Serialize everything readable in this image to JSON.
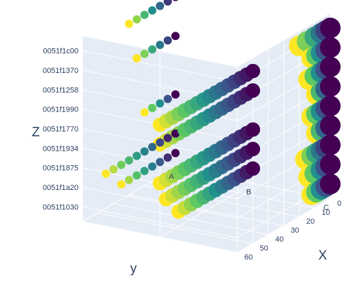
{
  "chart_data": {
    "type": "scatter",
    "mode": "3d",
    "colorscale": "viridis",
    "colorscale_stops": [
      "#440154",
      "#3b528b",
      "#21908c",
      "#5dc963",
      "#fde725"
    ],
    "background": "#e5ecf6",
    "grid": true,
    "axes": {
      "x": {
        "title": "X",
        "ticks": [
          "0",
          "10",
          "20",
          "30",
          "40",
          "50",
          "60"
        ],
        "range": [
          0,
          60
        ]
      },
      "y": {
        "title": "y",
        "ticks": [
          "A",
          "B",
          "C"
        ]
      },
      "z": {
        "title": "Z",
        "ticks": [
          "0051f1030",
          "0051f1a20",
          "0051f1875",
          "0051f1934",
          "0051f1770",
          "0051f1990",
          "0051f1258",
          "0051f1370",
          "0051f1c00"
        ]
      }
    },
    "series": [
      {
        "y": "C",
        "z": "0051f1030",
        "x": [
          0,
          3,
          6,
          9,
          12
        ]
      },
      {
        "y": "C",
        "z": "0051f1a20",
        "x": [
          0,
          3,
          6,
          10,
          14
        ]
      },
      {
        "y": "C",
        "z": "0051f1875",
        "x": [
          0,
          3,
          6,
          9,
          12,
          16
        ]
      },
      {
        "y": "C",
        "z": "0051f1934",
        "x": [
          0,
          3,
          6,
          9
        ]
      },
      {
        "y": "C",
        "z": "0051f1770",
        "x": [
          0,
          3,
          6,
          9,
          12
        ]
      },
      {
        "y": "C",
        "z": "0051f1990",
        "x": [
          0,
          3,
          6,
          9
        ]
      },
      {
        "y": "C",
        "z": "0051f1258",
        "x": [
          0,
          3,
          6,
          10,
          14
        ]
      },
      {
        "y": "C",
        "z": "0051f1370",
        "x": [
          0,
          3,
          6,
          9,
          12
        ]
      },
      {
        "y": "C",
        "z": "0051f1c00",
        "x": [
          0,
          3,
          6,
          10,
          15,
          20
        ]
      },
      {
        "y": "B",
        "z": "0051f1030",
        "x": [
          0,
          4,
          8,
          12,
          16,
          20,
          24,
          28,
          32,
          36,
          40,
          44,
          48
        ]
      },
      {
        "y": "B",
        "z": "0051f1a20",
        "x": [
          0,
          4,
          8,
          12,
          16,
          20,
          24,
          28,
          32,
          36,
          40,
          44,
          48,
          52,
          56
        ]
      },
      {
        "y": "B",
        "z": "0051f1875",
        "x": [
          0,
          4,
          8,
          12,
          16,
          20,
          24,
          28,
          32,
          36,
          40,
          44,
          48,
          52,
          56,
          60
        ]
      },
      {
        "y": "B",
        "z": "0051f1770",
        "x": [
          0,
          4,
          8,
          12,
          16,
          20,
          24,
          28,
          32,
          36,
          40,
          44,
          48,
          52,
          56,
          60
        ]
      },
      {
        "y": "B",
        "z": "0051f1990",
        "x": [
          0,
          4,
          8,
          12,
          16,
          20,
          24,
          28,
          32,
          36,
          40,
          44,
          48,
          52,
          56,
          60
        ]
      },
      {
        "y": "A",
        "z": "0051f1030",
        "x": [
          0,
          5,
          10,
          15,
          20,
          25,
          30,
          35
        ]
      },
      {
        "y": "A",
        "z": "0051f1a20",
        "x": [
          0,
          5,
          10,
          15,
          20,
          25,
          30,
          35,
          40,
          45
        ]
      },
      {
        "y": "A",
        "z": "0051f1934",
        "x": [
          0,
          5,
          10,
          15,
          20
        ]
      },
      {
        "y": "A",
        "z": "0051f1258",
        "x": [
          0,
          5,
          10,
          15,
          20,
          25
        ]
      },
      {
        "y": "A",
        "z": "0051f1c00",
        "x": [
          0,
          5,
          10,
          15,
          20,
          25,
          30
        ]
      }
    ]
  }
}
